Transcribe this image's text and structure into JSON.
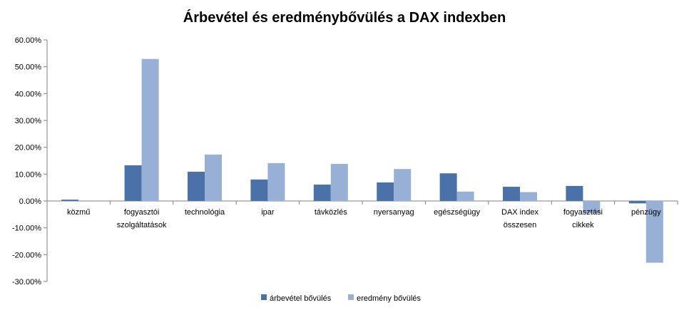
{
  "chart_data": {
    "type": "bar",
    "title": "Árbevétel és eredménybővülés a DAX indexben",
    "categories": [
      [
        "közmű"
      ],
      [
        "fogyasztói",
        "szolgáltatások"
      ],
      [
        "technológia"
      ],
      [
        "ipar"
      ],
      [
        "távközlés"
      ],
      [
        "nyersanyag"
      ],
      [
        "egészségügy"
      ],
      [
        "DAX index",
        "összesen"
      ],
      [
        "fogyasztási",
        "cikkek"
      ],
      [
        "pénzügy"
      ]
    ],
    "series": [
      {
        "name": "árbevétel bővülés",
        "color": "#4a72a8",
        "values": [
          0.5,
          13.3,
          10.9,
          8.0,
          6.1,
          6.9,
          10.3,
          5.3,
          5.6,
          -0.9
        ]
      },
      {
        "name": "eredmény bővülés",
        "color": "#98b0d6",
        "values": [
          0.0,
          52.9,
          17.3,
          14.1,
          13.8,
          11.9,
          3.5,
          3.3,
          -4.5,
          -23.0
        ]
      }
    ],
    "yticks": [
      "60.00%",
      "50.00%",
      "40.00%",
      "30.00%",
      "20.00%",
      "10.00%",
      "0.00%",
      "-10.00%",
      "-20.00%",
      "-30.00%"
    ],
    "ylim": [
      -30,
      60
    ],
    "grid": false,
    "legend": "bottom"
  }
}
